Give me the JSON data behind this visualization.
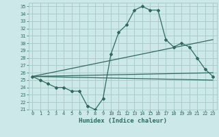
{
  "xlabel": "Humidex (Indice chaleur)",
  "background_color": "#cce8e8",
  "grid_color": "#aacccc",
  "line_color": "#2e6b5e",
  "xlim": [
    -0.5,
    23.5
  ],
  "ylim": [
    21,
    35.5
  ],
  "xticks": [
    0,
    1,
    2,
    3,
    4,
    5,
    6,
    7,
    8,
    9,
    10,
    11,
    12,
    13,
    14,
    15,
    16,
    17,
    18,
    19,
    20,
    21,
    22,
    23
  ],
  "yticks": [
    21,
    22,
    23,
    24,
    25,
    26,
    27,
    28,
    29,
    30,
    31,
    32,
    33,
    34,
    35
  ],
  "line1_x": [
    0,
    1,
    2,
    3,
    4,
    5,
    6,
    7,
    8,
    9,
    10,
    11,
    12,
    13,
    14,
    15,
    16,
    17,
    18,
    19,
    20,
    21,
    22,
    23
  ],
  "line1_y": [
    25.5,
    25.0,
    24.5,
    24.0,
    24.0,
    23.5,
    23.5,
    21.5,
    21.0,
    22.5,
    28.5,
    31.5,
    32.5,
    34.5,
    35.0,
    34.5,
    34.5,
    30.5,
    29.5,
    30.0,
    29.5,
    28.0,
    26.5,
    25.5
  ],
  "line2_x": [
    0,
    23
  ],
  "line2_y": [
    25.5,
    30.5
  ],
  "line3_x": [
    0,
    23
  ],
  "line3_y": [
    25.5,
    26.0
  ],
  "line4_x": [
    0,
    23
  ],
  "line4_y": [
    25.5,
    25.0
  ]
}
